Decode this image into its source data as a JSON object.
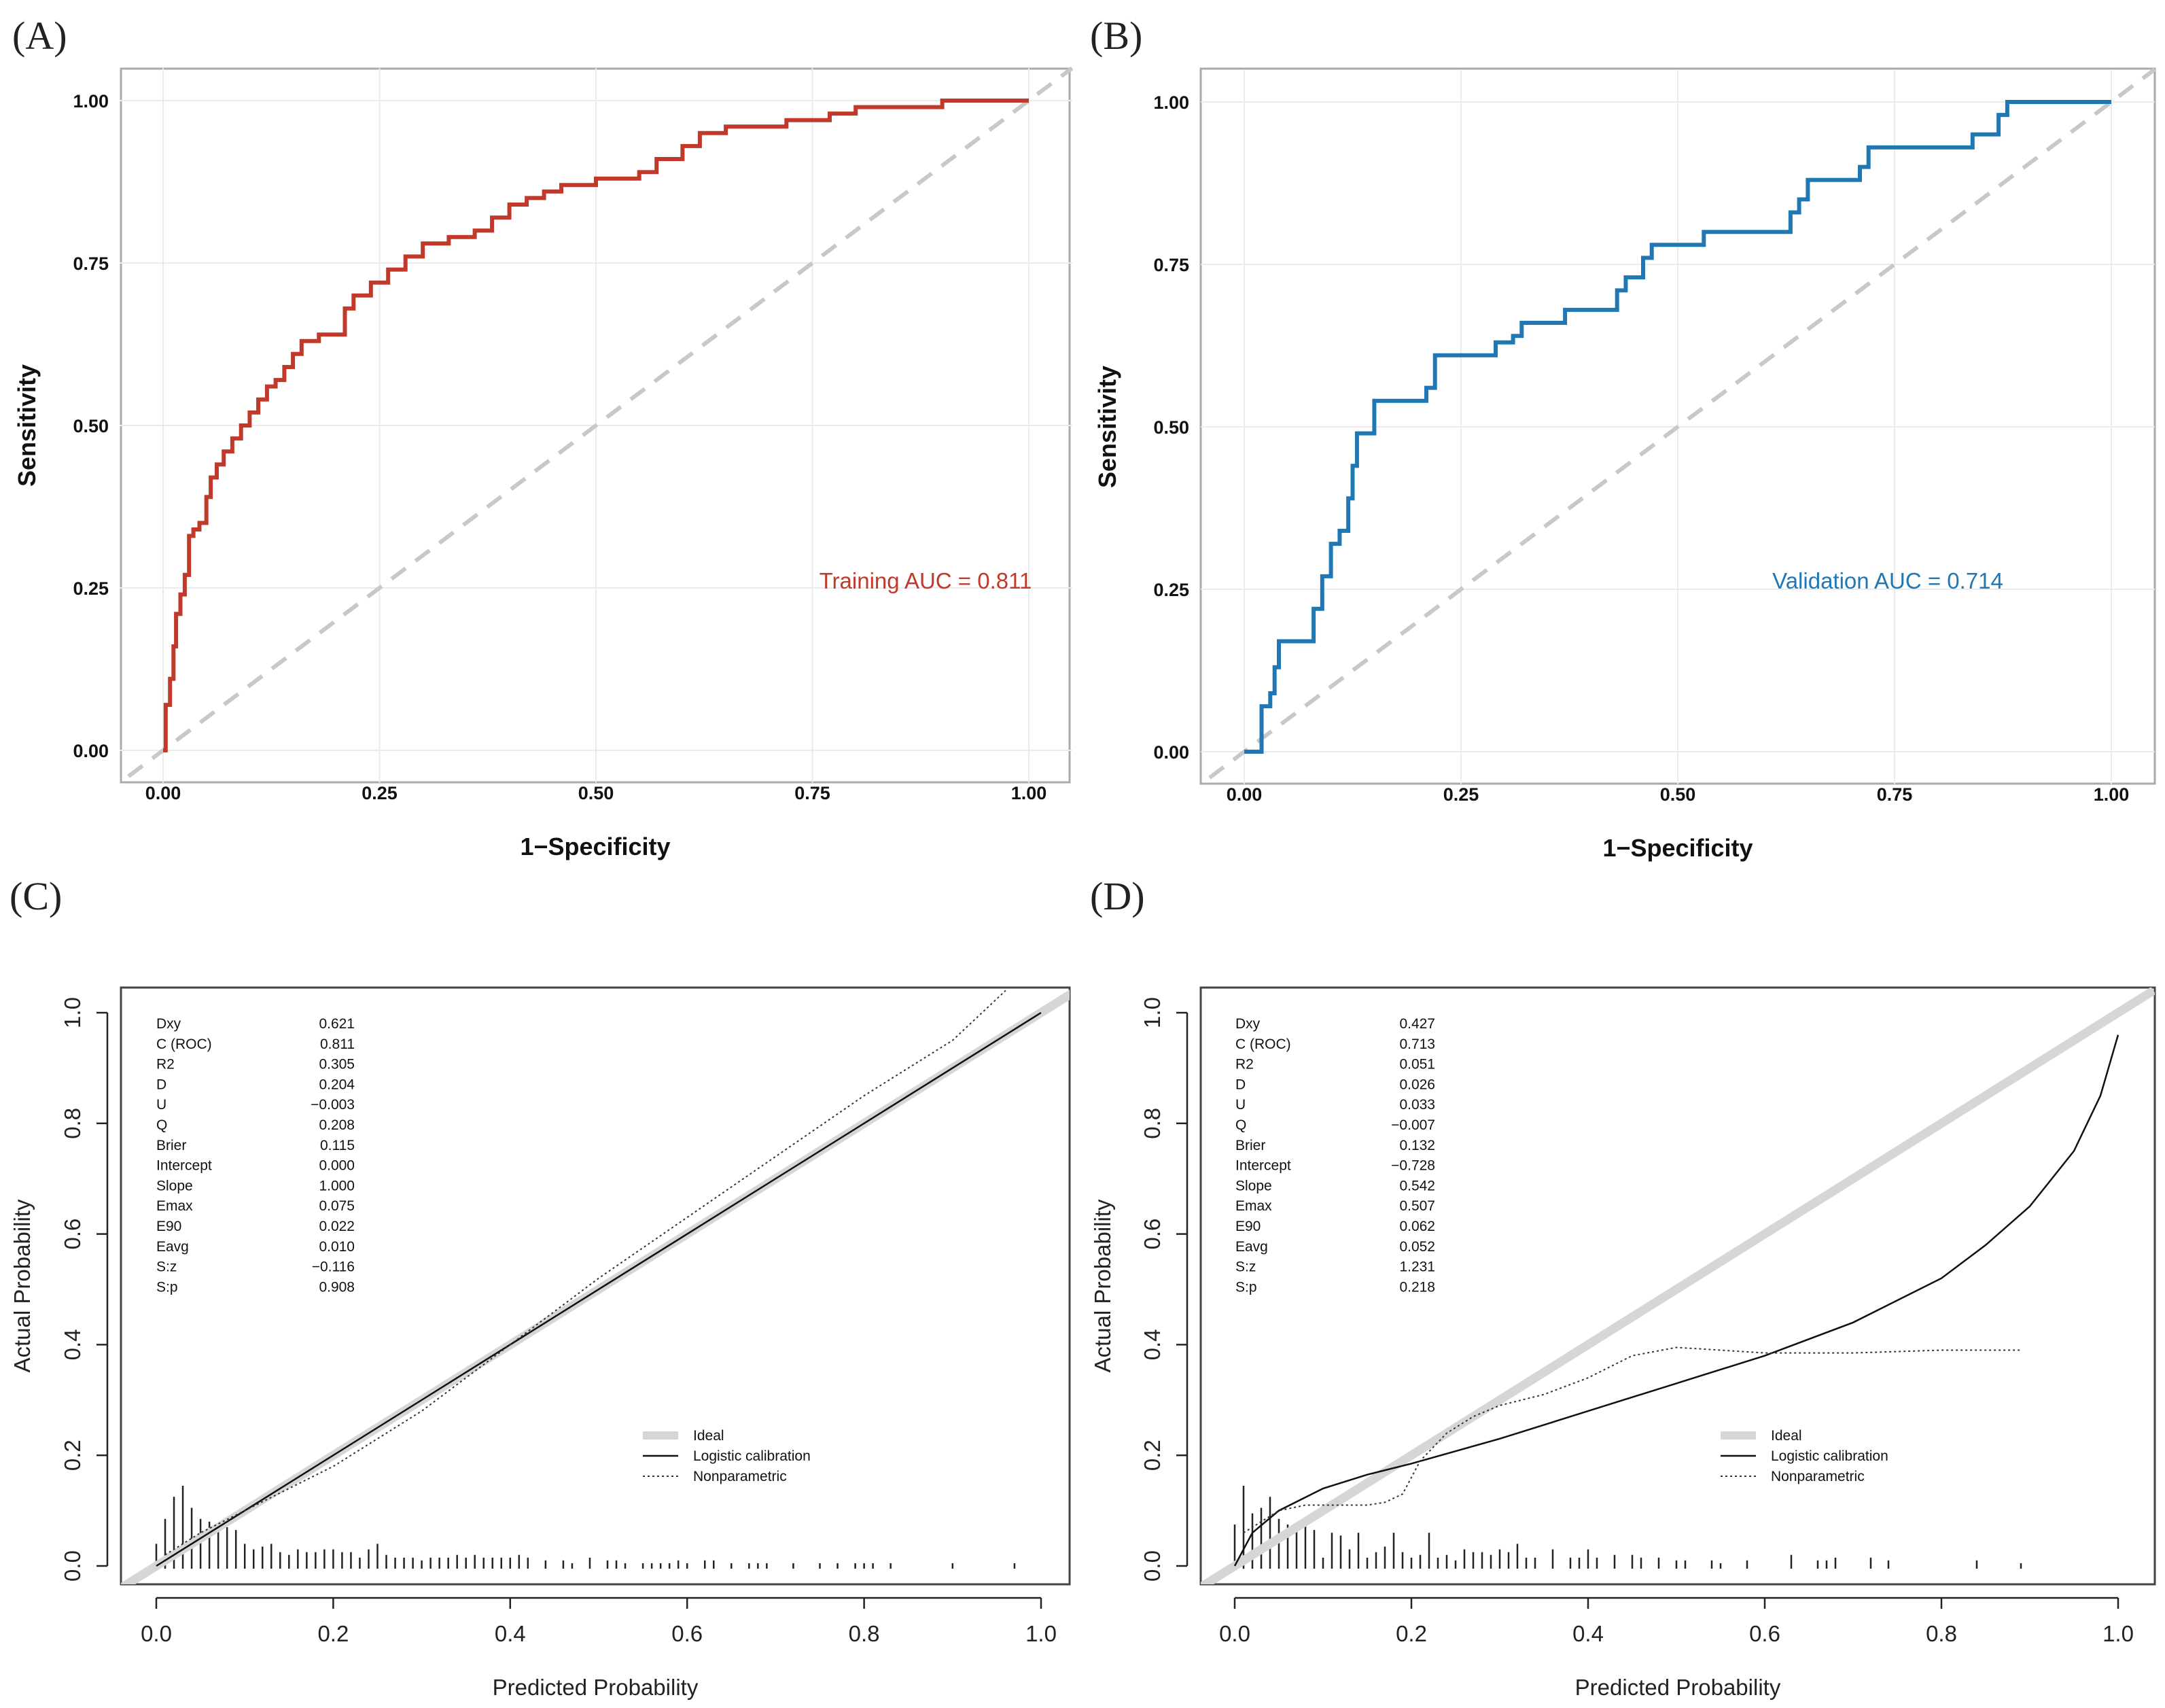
{
  "chart_data": [
    {
      "panel": "(A)",
      "type": "line",
      "xlabel": "1−Specificity",
      "ylabel": "Sensitivity",
      "xlim": [
        0,
        1
      ],
      "ylim": [
        0,
        1
      ],
      "xticks": [
        0,
        0.25,
        0.5,
        0.75,
        1
      ],
      "yticks": [
        0,
        0.25,
        0.5,
        0.75,
        1
      ],
      "tick_labels": [
        "0.00",
        "0.25",
        "0.50",
        "0.75",
        "1.00"
      ],
      "grid": true,
      "color": "#c0392b",
      "annotation": "Training AUC = 0.811",
      "reference_line": {
        "x": [
          0,
          1
        ],
        "y": [
          0,
          1
        ],
        "style": "dashed",
        "color": "#c8c8c8"
      },
      "x": [
        0,
        0.003,
        0.008,
        0.012,
        0.015,
        0.02,
        0.025,
        0.03,
        0.035,
        0.042,
        0.05,
        0.055,
        0.062,
        0.07,
        0.08,
        0.09,
        0.1,
        0.11,
        0.12,
        0.13,
        0.14,
        0.15,
        0.16,
        0.18,
        0.2,
        0.21,
        0.22,
        0.24,
        0.26,
        0.28,
        0.3,
        0.33,
        0.36,
        0.38,
        0.4,
        0.42,
        0.44,
        0.46,
        0.48,
        0.5,
        0.52,
        0.55,
        0.57,
        0.6,
        0.62,
        0.65,
        0.68,
        0.72,
        0.77,
        0.8,
        0.84,
        0.88,
        0.9,
        0.93,
        0.96,
        1.0
      ],
      "y": [
        0,
        0.07,
        0.11,
        0.16,
        0.21,
        0.24,
        0.27,
        0.33,
        0.34,
        0.35,
        0.39,
        0.42,
        0.44,
        0.46,
        0.48,
        0.5,
        0.52,
        0.54,
        0.56,
        0.57,
        0.59,
        0.61,
        0.63,
        0.64,
        0.64,
        0.68,
        0.7,
        0.72,
        0.74,
        0.76,
        0.78,
        0.79,
        0.8,
        0.82,
        0.84,
        0.85,
        0.86,
        0.87,
        0.87,
        0.88,
        0.88,
        0.89,
        0.91,
        0.93,
        0.95,
        0.96,
        0.96,
        0.97,
        0.98,
        0.99,
        0.99,
        0.99,
        1.0,
        1.0,
        1.0,
        1.0
      ]
    },
    {
      "panel": "(B)",
      "type": "line",
      "xlabel": "1−Specificity",
      "ylabel": "Sensitivity",
      "xlim": [
        0,
        1
      ],
      "ylim": [
        0,
        1
      ],
      "xticks": [
        0,
        0.25,
        0.5,
        0.75,
        1
      ],
      "yticks": [
        0,
        0.25,
        0.5,
        0.75,
        1
      ],
      "tick_labels": [
        "0.00",
        "0.25",
        "0.50",
        "0.75",
        "1.00"
      ],
      "grid": true,
      "color": "#1f78b4",
      "annotation": "Validation AUC = 0.714",
      "reference_line": {
        "x": [
          0,
          1
        ],
        "y": [
          0,
          1
        ],
        "style": "dashed",
        "color": "#c8c8c8"
      },
      "x": [
        0,
        0.02,
        0.02,
        0.03,
        0.035,
        0.04,
        0.07,
        0.08,
        0.09,
        0.1,
        0.11,
        0.12,
        0.125,
        0.13,
        0.14,
        0.15,
        0.16,
        0.2,
        0.21,
        0.22,
        0.23,
        0.28,
        0.29,
        0.31,
        0.32,
        0.36,
        0.37,
        0.42,
        0.43,
        0.44,
        0.45,
        0.46,
        0.47,
        0.52,
        0.53,
        0.62,
        0.63,
        0.64,
        0.65,
        0.7,
        0.71,
        0.72,
        0.73,
        0.83,
        0.84,
        0.86,
        0.87,
        0.88,
        1.0
      ],
      "y": [
        0,
        0.0,
        0.07,
        0.09,
        0.13,
        0.17,
        0.17,
        0.22,
        0.27,
        0.32,
        0.34,
        0.39,
        0.44,
        0.49,
        0.49,
        0.54,
        0.54,
        0.54,
        0.56,
        0.61,
        0.61,
        0.61,
        0.63,
        0.64,
        0.66,
        0.66,
        0.68,
        0.68,
        0.71,
        0.73,
        0.73,
        0.76,
        0.78,
        0.78,
        0.8,
        0.8,
        0.83,
        0.85,
        0.88,
        0.88,
        0.9,
        0.93,
        0.93,
        0.93,
        0.95,
        0.95,
        0.98,
        1.0,
        1.0
      ]
    },
    {
      "panel": "(C)",
      "type": "line",
      "xlabel": "Predicted Probability",
      "ylabel": "Actual Probability",
      "xlim": [
        -0.04,
        1.04
      ],
      "ylim": [
        -0.04,
        1.04
      ],
      "xticks": [
        0,
        0.2,
        0.4,
        0.6,
        0.8,
        1.0
      ],
      "yticks": [
        0,
        0.2,
        0.4,
        0.6,
        0.8,
        1.0
      ],
      "tick_labels": [
        "0.0",
        "0.2",
        "0.4",
        "0.6",
        "0.8",
        "1.0"
      ],
      "grid": false,
      "stats": [
        {
          "label": "Dxy",
          "value": "0.621"
        },
        {
          "label": "C (ROC)",
          "value": "0.811"
        },
        {
          "label": "R2",
          "value": "0.305"
        },
        {
          "label": "D",
          "value": "0.204"
        },
        {
          "label": "U",
          "value": "−0.003"
        },
        {
          "label": "Q",
          "value": "0.208"
        },
        {
          "label": "Brier",
          "value": "0.115"
        },
        {
          "label": "Intercept",
          "value": "0.000"
        },
        {
          "label": "Slope",
          "value": "1.000"
        },
        {
          "label": "Emax",
          "value": "0.075"
        },
        {
          "label": "E90",
          "value": "0.022"
        },
        {
          "label": "Eavg",
          "value": "0.010"
        },
        {
          "label": "S:z",
          "value": "−0.116"
        },
        {
          "label": "S:p",
          "value": "0.908"
        }
      ],
      "legend": [
        "Ideal",
        "Logistic calibration",
        "Nonparametric"
      ],
      "series": [
        {
          "name": "Ideal",
          "style": "thick-gray",
          "x": [
            -0.04,
            1.04
          ],
          "y": [
            -0.04,
            1.04
          ]
        },
        {
          "name": "Logistic calibration",
          "style": "solid",
          "x": [
            0,
            1.0
          ],
          "y": [
            0,
            1.0
          ]
        },
        {
          "name": "Nonparametric",
          "style": "dotted",
          "x": [
            0.01,
            0.05,
            0.1,
            0.15,
            0.2,
            0.25,
            0.3,
            0.35,
            0.4,
            0.45,
            0.5,
            0.6,
            0.7,
            0.8,
            0.9,
            0.96
          ],
          "y": [
            0.02,
            0.06,
            0.1,
            0.14,
            0.18,
            0.23,
            0.28,
            0.34,
            0.4,
            0.46,
            0.52,
            0.63,
            0.74,
            0.85,
            0.95,
            1.04
          ]
        }
      ],
      "spikes": {
        "x": [
          0.0,
          0.01,
          0.02,
          0.03,
          0.04,
          0.05,
          0.06,
          0.07,
          0.08,
          0.09,
          0.1,
          0.11,
          0.12,
          0.13,
          0.14,
          0.15,
          0.16,
          0.17,
          0.18,
          0.19,
          0.2,
          0.21,
          0.22,
          0.23,
          0.24,
          0.25,
          0.26,
          0.27,
          0.28,
          0.29,
          0.3,
          0.31,
          0.32,
          0.33,
          0.34,
          0.35,
          0.36,
          0.37,
          0.38,
          0.39,
          0.4,
          0.41,
          0.42,
          0.44,
          0.46,
          0.47,
          0.49,
          0.51,
          0.52,
          0.53,
          0.55,
          0.56,
          0.57,
          0.58,
          0.59,
          0.6,
          0.62,
          0.63,
          0.65,
          0.67,
          0.68,
          0.69,
          0.72,
          0.75,
          0.77,
          0.79,
          0.8,
          0.81,
          0.83,
          0.9,
          0.97
        ],
        "h": [
          0.045,
          0.09,
          0.13,
          0.15,
          0.11,
          0.09,
          0.085,
          0.08,
          0.075,
          0.07,
          0.045,
          0.035,
          0.04,
          0.045,
          0.03,
          0.025,
          0.035,
          0.03,
          0.03,
          0.035,
          0.035,
          0.03,
          0.03,
          0.02,
          0.035,
          0.045,
          0.025,
          0.02,
          0.02,
          0.02,
          0.015,
          0.02,
          0.02,
          0.02,
          0.025,
          0.02,
          0.025,
          0.02,
          0.02,
          0.02,
          0.02,
          0.025,
          0.02,
          0.015,
          0.015,
          0.01,
          0.02,
          0.015,
          0.015,
          0.01,
          0.01,
          0.01,
          0.01,
          0.01,
          0.015,
          0.01,
          0.015,
          0.015,
          0.01,
          0.01,
          0.01,
          0.01,
          0.01,
          0.01,
          0.01,
          0.01,
          0.01,
          0.01,
          0.01,
          0.01,
          0.01
        ]
      }
    },
    {
      "panel": "(D)",
      "type": "line",
      "xlabel": "Predicted Probability",
      "ylabel": "Actual Probability",
      "xlim": [
        -0.04,
        1.04
      ],
      "ylim": [
        -0.04,
        1.04
      ],
      "xticks": [
        0,
        0.2,
        0.4,
        0.6,
        0.8,
        1.0
      ],
      "yticks": [
        0,
        0.2,
        0.4,
        0.6,
        0.8,
        1.0
      ],
      "tick_labels": [
        "0.0",
        "0.2",
        "0.4",
        "0.6",
        "0.8",
        "1.0"
      ],
      "grid": false,
      "stats": [
        {
          "label": "Dxy",
          "value": "0.427"
        },
        {
          "label": "C (ROC)",
          "value": "0.713"
        },
        {
          "label": "R2",
          "value": "0.051"
        },
        {
          "label": "D",
          "value": "0.026"
        },
        {
          "label": "U",
          "value": "0.033"
        },
        {
          "label": "Q",
          "value": "−0.007"
        },
        {
          "label": "Brier",
          "value": "0.132"
        },
        {
          "label": "Intercept",
          "value": "−0.728"
        },
        {
          "label": "Slope",
          "value": "0.542"
        },
        {
          "label": "Emax",
          "value": "0.507"
        },
        {
          "label": "E90",
          "value": "0.062"
        },
        {
          "label": "Eavg",
          "value": "0.052"
        },
        {
          "label": "S:z",
          "value": "1.231"
        },
        {
          "label": "S:p",
          "value": "0.218"
        }
      ],
      "legend": [
        "Ideal",
        "Logistic calibration",
        "Nonparametric"
      ],
      "series": [
        {
          "name": "Ideal",
          "style": "thick-gray",
          "x": [
            -0.04,
            1.04
          ],
          "y": [
            -0.04,
            1.04
          ]
        },
        {
          "name": "Logistic calibration",
          "style": "solid",
          "x": [
            0.0,
            0.02,
            0.05,
            0.1,
            0.15,
            0.2,
            0.3,
            0.4,
            0.5,
            0.6,
            0.7,
            0.8,
            0.85,
            0.9,
            0.95,
            0.98,
            1.0
          ],
          "y": [
            0.0,
            0.06,
            0.1,
            0.14,
            0.165,
            0.185,
            0.23,
            0.28,
            0.33,
            0.38,
            0.44,
            0.52,
            0.58,
            0.65,
            0.75,
            0.85,
            0.96
          ]
        },
        {
          "name": "Nonparametric",
          "style": "dotted",
          "x": [
            0.01,
            0.03,
            0.05,
            0.08,
            0.1,
            0.12,
            0.15,
            0.17,
            0.19,
            0.21,
            0.24,
            0.27,
            0.3,
            0.35,
            0.4,
            0.45,
            0.5,
            0.55,
            0.6,
            0.7,
            0.8,
            0.89
          ],
          "y": [
            0.06,
            0.08,
            0.1,
            0.11,
            0.11,
            0.11,
            0.11,
            0.115,
            0.13,
            0.19,
            0.24,
            0.27,
            0.29,
            0.31,
            0.34,
            0.38,
            0.395,
            0.39,
            0.385,
            0.385,
            0.39,
            0.39
          ]
        }
      ],
      "spikes": {
        "x": [
          0.0,
          0.01,
          0.02,
          0.03,
          0.04,
          0.05,
          0.06,
          0.07,
          0.08,
          0.09,
          0.1,
          0.11,
          0.12,
          0.13,
          0.14,
          0.15,
          0.16,
          0.17,
          0.18,
          0.19,
          0.2,
          0.21,
          0.22,
          0.23,
          0.24,
          0.25,
          0.26,
          0.27,
          0.28,
          0.29,
          0.3,
          0.31,
          0.32,
          0.33,
          0.34,
          0.36,
          0.38,
          0.39,
          0.4,
          0.41,
          0.43,
          0.45,
          0.46,
          0.48,
          0.5,
          0.51,
          0.54,
          0.55,
          0.58,
          0.63,
          0.66,
          0.67,
          0.68,
          0.72,
          0.74,
          0.84,
          0.89
        ],
        "h": [
          0.08,
          0.15,
          0.1,
          0.11,
          0.13,
          0.09,
          0.08,
          0.07,
          0.09,
          0.07,
          0.02,
          0.065,
          0.06,
          0.035,
          0.065,
          0.02,
          0.03,
          0.04,
          0.065,
          0.03,
          0.02,
          0.025,
          0.065,
          0.02,
          0.025,
          0.015,
          0.035,
          0.03,
          0.03,
          0.025,
          0.035,
          0.03,
          0.045,
          0.02,
          0.02,
          0.035,
          0.02,
          0.02,
          0.035,
          0.02,
          0.025,
          0.025,
          0.02,
          0.02,
          0.015,
          0.015,
          0.015,
          0.01,
          0.015,
          0.025,
          0.015,
          0.015,
          0.02,
          0.02,
          0.015,
          0.015,
          0.01
        ]
      }
    }
  ]
}
